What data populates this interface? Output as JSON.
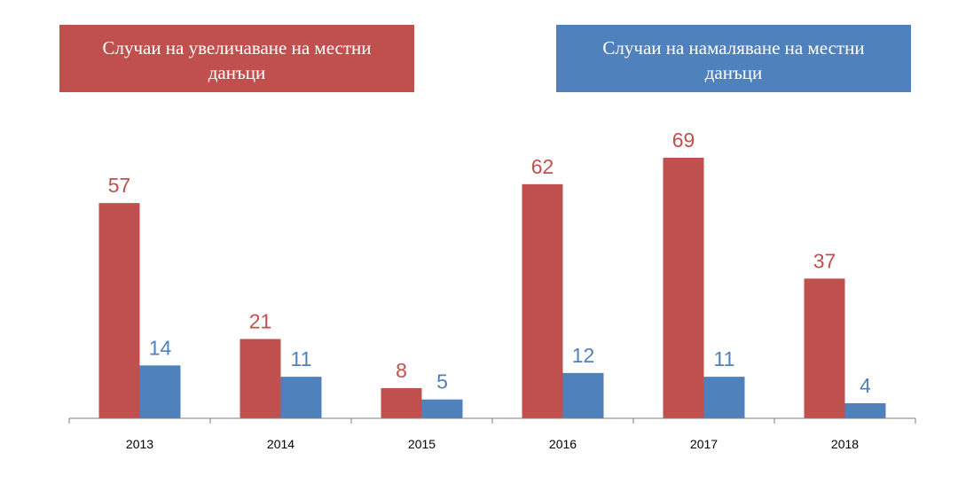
{
  "colors": {
    "increase": "#c0504d",
    "decrease": "#4f81bd",
    "axis": "#7f7f7f"
  },
  "legend": {
    "increase_label": "Случаи на увеличаване на местни данъци",
    "decrease_label": "Случаи на намаляване на местни данъци"
  },
  "chart_data": {
    "type": "bar",
    "categories": [
      "2013",
      "2014",
      "2015",
      "2016",
      "2017",
      "2018"
    ],
    "series": [
      {
        "name": "Случаи на увеличаване на местни данъци",
        "values": [
          57,
          21,
          8,
          62,
          69,
          37
        ]
      },
      {
        "name": "Случаи на намаляване на местни данъци",
        "values": [
          14,
          11,
          5,
          12,
          11,
          4
        ]
      }
    ],
    "ylim": [
      0,
      69
    ],
    "grid": false,
    "legend_position": "top"
  }
}
